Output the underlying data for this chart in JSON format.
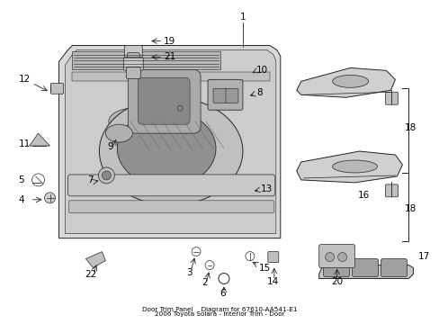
{
  "bg_color": "#ffffff",
  "fig_width": 4.89,
  "fig_height": 3.6,
  "dpi": 100,
  "line_color": "#222222",
  "fill_light": "#e0e0e0",
  "fill_mid": "#c8c8c8",
  "fill_dark": "#aaaaaa",
  "fill_darker": "#888888"
}
